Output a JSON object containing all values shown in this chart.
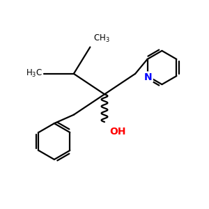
{
  "bg_color": "#ffffff",
  "bond_color": "#000000",
  "bond_width": 1.6,
  "oh_color": "#ff0000",
  "n_color": "#0000ff",
  "text_color": "#000000",
  "figsize": [
    3.0,
    3.0
  ],
  "dpi": 100,
  "xlim": [
    0,
    10
  ],
  "ylim": [
    0,
    10
  ]
}
